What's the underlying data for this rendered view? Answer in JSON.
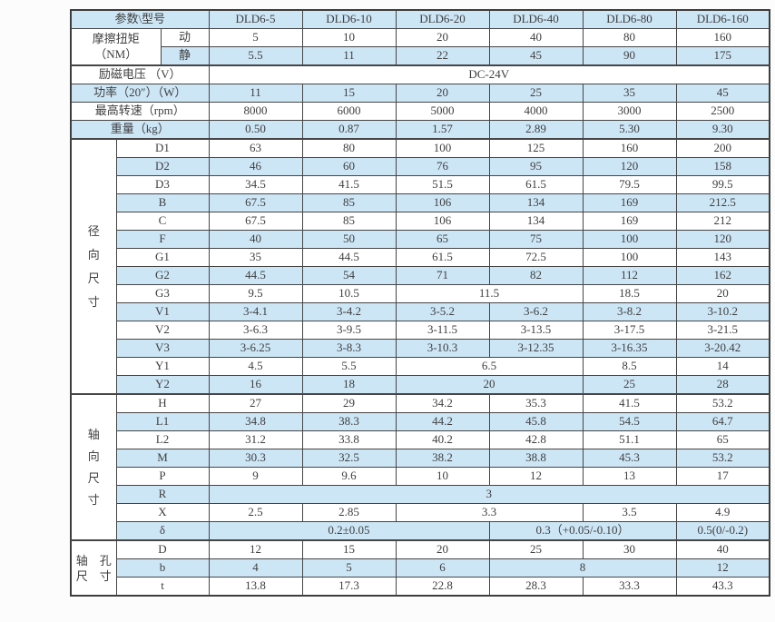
{
  "table": {
    "header": {
      "param_label": "参数\\型号",
      "models": [
        "DLD6-5",
        "DLD6-10",
        "DLD6-20",
        "DLD6-40",
        "DLD6-80",
        "DLD6-160"
      ]
    },
    "torque": {
      "label_line1": "摩擦扭矩",
      "label_line2": "（NM）",
      "rows": [
        {
          "label": "动",
          "cells": [
            {
              "t": "5",
              "s": 1
            },
            {
              "t": "10",
              "s": 1
            },
            {
              "t": "20",
              "s": 1
            },
            {
              "t": "40",
              "s": 1
            },
            {
              "t": "80",
              "s": 1
            },
            {
              "t": "160",
              "s": 1
            }
          ]
        },
        {
          "label": "静",
          "cells": [
            {
              "t": "5.5",
              "s": 1
            },
            {
              "t": "11",
              "s": 1
            },
            {
              "t": "22",
              "s": 1
            },
            {
              "t": "45",
              "s": 1
            },
            {
              "t": "90",
              "s": 1
            },
            {
              "t": "175",
              "s": 1
            }
          ]
        }
      ]
    },
    "param_rows": [
      {
        "label": "励磁电压 （V）",
        "cells": [
          {
            "t": "DC-24V",
            "s": 6
          }
        ]
      },
      {
        "label": "功率（20″）（W）",
        "cells": [
          {
            "t": "11",
            "s": 1
          },
          {
            "t": "15",
            "s": 1
          },
          {
            "t": "20",
            "s": 1
          },
          {
            "t": "25",
            "s": 1
          },
          {
            "t": "35",
            "s": 1
          },
          {
            "t": "45",
            "s": 1
          }
        ]
      },
      {
        "label": "最高转速（rpm）",
        "cells": [
          {
            "t": "8000",
            "s": 1
          },
          {
            "t": "6000",
            "s": 1
          },
          {
            "t": "5000",
            "s": 1
          },
          {
            "t": "4000",
            "s": 1
          },
          {
            "t": "3000",
            "s": 1
          },
          {
            "t": "2500",
            "s": 1
          }
        ]
      },
      {
        "label": "重量（kg）",
        "cells": [
          {
            "t": "0.50",
            "s": 1
          },
          {
            "t": "0.87",
            "s": 1
          },
          {
            "t": "1.57",
            "s": 1
          },
          {
            "t": "2.89",
            "s": 1
          },
          {
            "t": "5.30",
            "s": 1
          },
          {
            "t": "9.30",
            "s": 1
          }
        ]
      }
    ],
    "radial": {
      "label_lines": [
        "径",
        "向",
        "尺",
        "寸"
      ],
      "rows": [
        {
          "label": "D1",
          "cells": [
            {
              "t": "63",
              "s": 1
            },
            {
              "t": "80",
              "s": 1
            },
            {
              "t": "100",
              "s": 1
            },
            {
              "t": "125",
              "s": 1
            },
            {
              "t": "160",
              "s": 1
            },
            {
              "t": "200",
              "s": 1
            }
          ]
        },
        {
          "label": "D2",
          "cells": [
            {
              "t": "46",
              "s": 1
            },
            {
              "t": "60",
              "s": 1
            },
            {
              "t": "76",
              "s": 1
            },
            {
              "t": "95",
              "s": 1
            },
            {
              "t": "120",
              "s": 1
            },
            {
              "t": "158",
              "s": 1
            }
          ]
        },
        {
          "label": "D3",
          "cells": [
            {
              "t": "34.5",
              "s": 1
            },
            {
              "t": "41.5",
              "s": 1
            },
            {
              "t": "51.5",
              "s": 1
            },
            {
              "t": "61.5",
              "s": 1
            },
            {
              "t": "79.5",
              "s": 1
            },
            {
              "t": "99.5",
              "s": 1
            }
          ]
        },
        {
          "label": "B",
          "cells": [
            {
              "t": "67.5",
              "s": 1
            },
            {
              "t": "85",
              "s": 1
            },
            {
              "t": "106",
              "s": 1
            },
            {
              "t": "134",
              "s": 1
            },
            {
              "t": "169",
              "s": 1
            },
            {
              "t": "212.5",
              "s": 1
            }
          ]
        },
        {
          "label": "C",
          "cells": [
            {
              "t": "67.5",
              "s": 1
            },
            {
              "t": "85",
              "s": 1
            },
            {
              "t": "106",
              "s": 1
            },
            {
              "t": "134",
              "s": 1
            },
            {
              "t": "169",
              "s": 1
            },
            {
              "t": "212",
              "s": 1
            }
          ]
        },
        {
          "label": "F",
          "cells": [
            {
              "t": "40",
              "s": 1
            },
            {
              "t": "50",
              "s": 1
            },
            {
              "t": "65",
              "s": 1
            },
            {
              "t": "75",
              "s": 1
            },
            {
              "t": "100",
              "s": 1
            },
            {
              "t": "120",
              "s": 1
            }
          ]
        },
        {
          "label": "G1",
          "cells": [
            {
              "t": "35",
              "s": 1
            },
            {
              "t": "44.5",
              "s": 1
            },
            {
              "t": "61.5",
              "s": 1
            },
            {
              "t": "72.5",
              "s": 1
            },
            {
              "t": "100",
              "s": 1
            },
            {
              "t": "143",
              "s": 1
            }
          ]
        },
        {
          "label": "G2",
          "cells": [
            {
              "t": "44.5",
              "s": 1
            },
            {
              "t": "54",
              "s": 1
            },
            {
              "t": "71",
              "s": 1
            },
            {
              "t": "82",
              "s": 1
            },
            {
              "t": "112",
              "s": 1
            },
            {
              "t": "162",
              "s": 1
            }
          ]
        },
        {
          "label": "G3",
          "cells": [
            {
              "t": "9.5",
              "s": 1
            },
            {
              "t": "10.5",
              "s": 1
            },
            {
              "t": "11.5",
              "s": 2
            },
            {
              "t": "18.5",
              "s": 1
            },
            {
              "t": "20",
              "s": 1
            }
          ]
        },
        {
          "label": "V1",
          "cells": [
            {
              "t": "3-4.1",
              "s": 1
            },
            {
              "t": "3-4.2",
              "s": 1
            },
            {
              "t": "3-5.2",
              "s": 1
            },
            {
              "t": "3-6.2",
              "s": 1
            },
            {
              "t": "3-8.2",
              "s": 1
            },
            {
              "t": "3-10.2",
              "s": 1
            }
          ]
        },
        {
          "label": "V2",
          "cells": [
            {
              "t": "3-6.3",
              "s": 1
            },
            {
              "t": "3-9.5",
              "s": 1
            },
            {
              "t": "3-11.5",
              "s": 1
            },
            {
              "t": "3-13.5",
              "s": 1
            },
            {
              "t": "3-17.5",
              "s": 1
            },
            {
              "t": "3-21.5",
              "s": 1
            }
          ]
        },
        {
          "label": "V3",
          "cells": [
            {
              "t": "3-6.25",
              "s": 1
            },
            {
              "t": "3-8.3",
              "s": 1
            },
            {
              "t": "3-10.3",
              "s": 1
            },
            {
              "t": "3-12.35",
              "s": 1
            },
            {
              "t": "3-16.35",
              "s": 1
            },
            {
              "t": "3-20.42",
              "s": 1
            }
          ]
        },
        {
          "label": "Y1",
          "cells": [
            {
              "t": "4.5",
              "s": 1
            },
            {
              "t": "5.5",
              "s": 1
            },
            {
              "t": "6.5",
              "s": 2
            },
            {
              "t": "8.5",
              "s": 1
            },
            {
              "t": "14",
              "s": 1
            }
          ]
        },
        {
          "label": "Y2",
          "cells": [
            {
              "t": "16",
              "s": 1
            },
            {
              "t": "18",
              "s": 1
            },
            {
              "t": "20",
              "s": 2
            },
            {
              "t": "25",
              "s": 1
            },
            {
              "t": "28",
              "s": 1
            }
          ]
        }
      ]
    },
    "axial": {
      "label_lines": [
        "轴",
        "向",
        "尺",
        "寸"
      ],
      "rows": [
        {
          "label": "H",
          "cells": [
            {
              "t": "27",
              "s": 1
            },
            {
              "t": "29",
              "s": 1
            },
            {
              "t": "34.2",
              "s": 1
            },
            {
              "t": "35.3",
              "s": 1
            },
            {
              "t": "41.5",
              "s": 1
            },
            {
              "t": "53.2",
              "s": 1
            }
          ]
        },
        {
          "label": "L1",
          "cells": [
            {
              "t": "34.8",
              "s": 1
            },
            {
              "t": "38.3",
              "s": 1
            },
            {
              "t": "44.2",
              "s": 1
            },
            {
              "t": "45.8",
              "s": 1
            },
            {
              "t": "54.5",
              "s": 1
            },
            {
              "t": "64.7",
              "s": 1
            }
          ]
        },
        {
          "label": "L2",
          "cells": [
            {
              "t": "31.2",
              "s": 1
            },
            {
              "t": "33.8",
              "s": 1
            },
            {
              "t": "40.2",
              "s": 1
            },
            {
              "t": "42.8",
              "s": 1
            },
            {
              "t": "51.1",
              "s": 1
            },
            {
              "t": "65",
              "s": 1
            }
          ]
        },
        {
          "label": "M",
          "cells": [
            {
              "t": "30.3",
              "s": 1
            },
            {
              "t": "32.5",
              "s": 1
            },
            {
              "t": "38.2",
              "s": 1
            },
            {
              "t": "38.8",
              "s": 1
            },
            {
              "t": "45.3",
              "s": 1
            },
            {
              "t": "53.2",
              "s": 1
            }
          ]
        },
        {
          "label": "P",
          "cells": [
            {
              "t": "9",
              "s": 1
            },
            {
              "t": "9.6",
              "s": 1
            },
            {
              "t": "10",
              "s": 1
            },
            {
              "t": "12",
              "s": 1
            },
            {
              "t": "13",
              "s": 1
            },
            {
              "t": "17",
              "s": 1
            }
          ]
        },
        {
          "label": "R",
          "cells": [
            {
              "t": "3",
              "s": 6
            }
          ]
        },
        {
          "label": "X",
          "cells": [
            {
              "t": "2.5",
              "s": 1
            },
            {
              "t": "2.85",
              "s": 1
            },
            {
              "t": "3.3",
              "s": 2
            },
            {
              "t": "3.5",
              "s": 1
            },
            {
              "t": "4.9",
              "s": 1
            }
          ]
        },
        {
          "label": "δ",
          "cells": [
            {
              "t": "0.2±0.05",
              "s": 3
            },
            {
              "t": "0.3（+0.05/-0.10）",
              "s": 2
            },
            {
              "t": "0.5(0/-0.2)",
              "s": 1
            }
          ]
        }
      ]
    },
    "shaft": {
      "label_lines": [
        "轴　孔",
        "尺　寸"
      ],
      "rows": [
        {
          "label": "D",
          "cells": [
            {
              "t": "12",
              "s": 1
            },
            {
              "t": "15",
              "s": 1
            },
            {
              "t": "20",
              "s": 1
            },
            {
              "t": "25",
              "s": 1
            },
            {
              "t": "30",
              "s": 1
            },
            {
              "t": "40",
              "s": 1
            }
          ]
        },
        {
          "label": "b",
          "cells": [
            {
              "t": "4",
              "s": 1
            },
            {
              "t": "5",
              "s": 1
            },
            {
              "t": "6",
              "s": 1
            },
            {
              "t": "8",
              "s": 2
            },
            {
              "t": "12",
              "s": 1
            }
          ]
        },
        {
          "label": "t",
          "cells": [
            {
              "t": "13.8",
              "s": 1
            },
            {
              "t": "17.3",
              "s": 1
            },
            {
              "t": "22.8",
              "s": 1
            },
            {
              "t": "28.3",
              "s": 1
            },
            {
              "t": "33.3",
              "s": 1
            },
            {
              "t": "43.3",
              "s": 1
            }
          ]
        }
      ]
    },
    "colors": {
      "stripe_blue": "#cde6f6",
      "stripe_white": "#ffffff",
      "border": "#454545",
      "text": "#3f3f3f"
    }
  }
}
